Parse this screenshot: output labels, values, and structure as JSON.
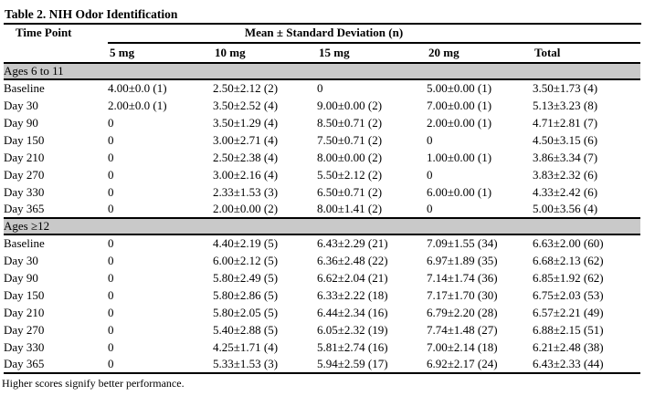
{
  "table": {
    "title": "Table 2. NIH Odor Identification",
    "section_band_color": "#c9c9c9",
    "header": {
      "col1": "Time Point",
      "span_label": "Mean ± Standard Deviation (n)",
      "columns": [
        "5 mg",
        "10 mg",
        "15 mg",
        "20 mg",
        "Total"
      ]
    },
    "sections": [
      {
        "label": "Ages 6 to 11",
        "rows": [
          {
            "time_point": "Baseline",
            "values": [
              "4.00±0.0 (1)",
              "2.50±2.12 (2)",
              "0",
              "5.00±0.00 (1)",
              "3.50±1.73 (4)"
            ]
          },
          {
            "time_point": "Day 30",
            "values": [
              "2.00±0.0 (1)",
              "3.50±2.52 (4)",
              "9.00±0.00 (2)",
              "7.00±0.00 (1)",
              "5.13±3.23 (8)"
            ]
          },
          {
            "time_point": "Day 90",
            "values": [
              "0",
              "3.50±1.29 (4)",
              "8.50±0.71 (2)",
              "2.00±0.00 (1)",
              "4.71±2.81 (7)"
            ]
          },
          {
            "time_point": "Day 150",
            "values": [
              "0",
              "3.00±2.71 (4)",
              "7.50±0.71 (2)",
              "0",
              "4.50±3.15 (6)"
            ]
          },
          {
            "time_point": "Day 210",
            "values": [
              "0",
              "2.50±2.38 (4)",
              "8.00±0.00 (2)",
              "1.00±0.00 (1)",
              "3.86±3.34 (7)"
            ]
          },
          {
            "time_point": "Day 270",
            "values": [
              "0",
              "3.00±2.16 (4)",
              "5.50±2.12 (2)",
              "0",
              "3.83±2.32 (6)"
            ]
          },
          {
            "time_point": "Day 330",
            "values": [
              "0",
              "2.33±1.53 (3)",
              "6.50±0.71 (2)",
              "6.00±0.00 (1)",
              "4.33±2.42 (6)"
            ]
          },
          {
            "time_point": "Day 365",
            "values": [
              "0",
              "2.00±0.00 (2)",
              "8.00±1.41 (2)",
              "0",
              "5.00±3.56 (4)"
            ]
          }
        ]
      },
      {
        "label": "Ages ≥12",
        "rows": [
          {
            "time_point": "Baseline",
            "values": [
              "0",
              "4.40±2.19 (5)",
              "6.43±2.29 (21)",
              "7.09±1.55 (34)",
              "6.63±2.00 (60)"
            ]
          },
          {
            "time_point": "Day 30",
            "values": [
              "0",
              "6.00±2.12 (5)",
              "6.36±2.48 (22)",
              "6.97±1.89 (35)",
              "6.68±2.13 (62)"
            ]
          },
          {
            "time_point": "Day 90",
            "values": [
              "0",
              "5.80±2.49 (5)",
              "6.62±2.04 (21)",
              "7.14±1.74 (36)",
              "6.85±1.92 (62)"
            ]
          },
          {
            "time_point": "Day 150",
            "values": [
              "0",
              "5.80±2.86 (5)",
              "6.33±2.22 (18)",
              "7.17±1.70 (30)",
              "6.75±2.03 (53)"
            ]
          },
          {
            "time_point": "Day 210",
            "values": [
              "0",
              "5.80±2.05 (5)",
              "6.44±2.34 (16)",
              "6.79±2.20 (28)",
              "6.57±2.21 (49)"
            ]
          },
          {
            "time_point": "Day 270",
            "values": [
              "0",
              "5.40±2.88 (5)",
              "6.05±2.32 (19)",
              "7.74±1.48 (27)",
              "6.88±2.15 (51)"
            ]
          },
          {
            "time_point": "Day 330",
            "values": [
              "0",
              "4.25±1.71 (4)",
              "5.81±2.74 (16)",
              "7.00±2.14 (18)",
              "6.21±2.48 (38)"
            ]
          },
          {
            "time_point": "Day 365",
            "values": [
              "0",
              "5.33±1.53 (3)",
              "5.94±2.59 (17)",
              "6.92±2.17 (24)",
              "6.43±2.33 (44)"
            ]
          }
        ]
      }
    ],
    "footnote": "Higher scores signify better performance."
  }
}
